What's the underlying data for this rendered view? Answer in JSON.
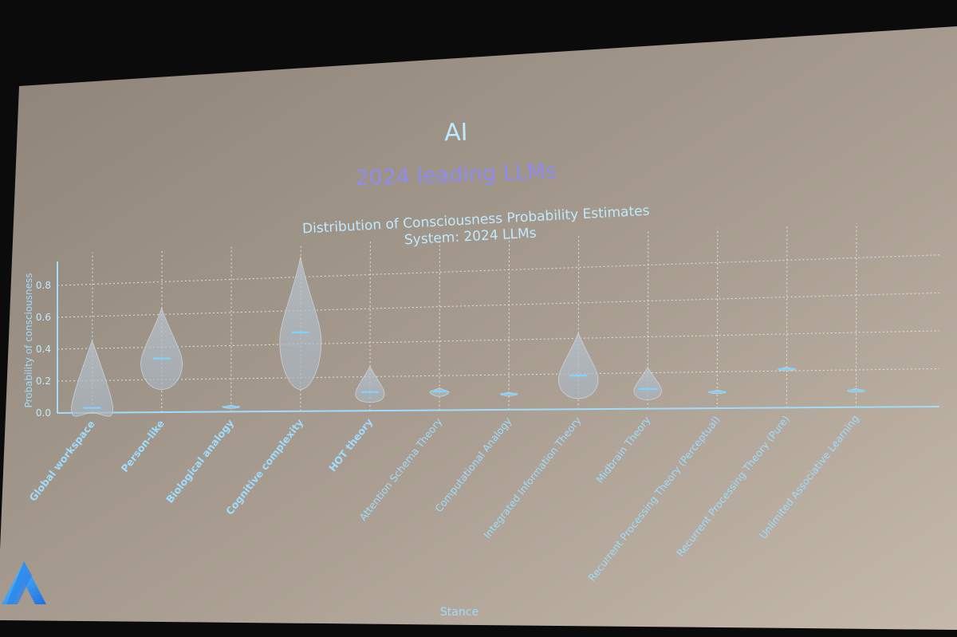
{
  "slide": {
    "title": "AI",
    "subtitle": "2024 leading LLMs",
    "title_color": "#bfe9ff",
    "subtitle_color": "#8f8cf0",
    "accent_color": "#7fd3ff",
    "logo": "stylized-A-logo"
  },
  "chart_data": {
    "type": "violin",
    "title": "Distribution of Consciousness Probability Estimates",
    "subtitle": "System: 2024 LLMs",
    "xlabel": "Stance",
    "ylabel": "Probability of consciousness",
    "ylim": [
      0,
      0.9
    ],
    "yticks": [
      "0.0",
      "0.2",
      "0.4",
      "0.6",
      "0.8"
    ],
    "grid": true,
    "categories": [
      "Global workspace",
      "Person-like",
      "Biological analogy",
      "Cognitive complexity",
      "HOT theory",
      "Attention Schema Theory",
      "Computational Analogy",
      "Integrated Information Theory",
      "Midbrain Theory",
      "Recurrent Processing Theory (Perceptual)",
      "Recurrent Processing Theory (Pure)",
      "Unlimited Associative Learning"
    ],
    "bold_categories": [
      "Global workspace",
      "Person-like",
      "Biological analogy",
      "Cognitive complexity",
      "HOT theory"
    ],
    "medians": [
      0.03,
      0.33,
      0.03,
      0.47,
      0.11,
      0.11,
      0.09,
      0.19,
      0.11,
      0.09,
      0.21,
      0.09
    ],
    "ranges": [
      [
        0.0,
        0.45
      ],
      [
        0.14,
        0.64
      ],
      [
        0.02,
        0.04
      ],
      [
        0.13,
        0.92
      ],
      [
        0.05,
        0.26
      ],
      [
        0.08,
        0.13
      ],
      [
        0.08,
        0.1
      ],
      [
        0.06,
        0.43
      ],
      [
        0.05,
        0.23
      ],
      [
        0.08,
        0.1
      ],
      [
        0.2,
        0.22
      ],
      [
        0.08,
        0.1
      ]
    ]
  }
}
